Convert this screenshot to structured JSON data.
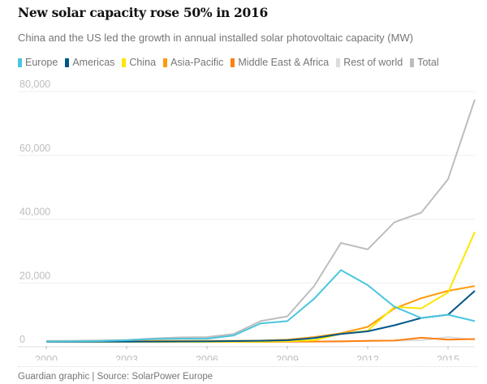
{
  "chart_data": {
    "type": "line",
    "title": "New solar capacity rose 50% in 2016",
    "subtitle": "China and the US led the growth in annual installed solar photovoltaic capacity (MW)",
    "xlabel": "",
    "ylabel": "",
    "x": [
      2000,
      2001,
      2002,
      2003,
      2004,
      2005,
      2006,
      2007,
      2008,
      2009,
      2010,
      2011,
      2012,
      2013,
      2014,
      2015,
      2016
    ],
    "xticks": [
      2000,
      2003,
      2006,
      2009,
      2012,
      2015
    ],
    "xtick_labels": [
      "2000",
      "2003",
      "2006",
      "2009",
      "2012",
      "2015"
    ],
    "yticks": [
      0,
      20000,
      40000,
      60000,
      80000
    ],
    "ytick_labels": [
      "0",
      "20,000",
      "40,000",
      "60,000",
      "80,000"
    ],
    "ylim": [
      0,
      80000
    ],
    "xlim": [
      2000,
      2016
    ],
    "grid": true,
    "legend_position": "top-left",
    "series": [
      {
        "name": "Europe",
        "color": "#4bc6df",
        "values": [
          100,
          150,
          250,
          500,
          900,
          1000,
          1000,
          2000,
          5800,
          6500,
          13500,
          22500,
          17800,
          11000,
          7500,
          8500,
          6500
        ]
      },
      {
        "name": "Americas",
        "color": "#005689",
        "values": [
          20,
          30,
          50,
          70,
          100,
          120,
          150,
          250,
          350,
          500,
          1200,
          2500,
          3300,
          5200,
          7500,
          8500,
          16000
        ]
      },
      {
        "name": "China",
        "color": "#ffe500",
        "values": [
          0,
          0,
          0,
          10,
          20,
          10,
          10,
          20,
          40,
          200,
          500,
          2500,
          3500,
          11000,
          10500,
          15500,
          34500
        ]
      },
      {
        "name": "Asia-Pacific",
        "color": "#ff9b0b",
        "values": [
          100,
          120,
          180,
          250,
          300,
          300,
          300,
          350,
          400,
          700,
          1500,
          2700,
          4700,
          10500,
          13700,
          16000,
          17500
        ]
      },
      {
        "name": "Middle East & Africa",
        "color": "#ff7f0f",
        "values": [
          0,
          0,
          0,
          0,
          0,
          0,
          0,
          0,
          0,
          50,
          100,
          150,
          300,
          400,
          1300,
          700,
          900
        ]
      },
      {
        "name": "Rest of world",
        "color": "#dcdcdc",
        "values": [
          0,
          0,
          0,
          0,
          0,
          0,
          0,
          0,
          0,
          50,
          100,
          200,
          300,
          400,
          500,
          1500,
          700
        ]
      },
      {
        "name": "Total",
        "color": "#bdbdbd",
        "values": [
          300,
          350,
          450,
          600,
          1100,
          1400,
          1500,
          2500,
          6500,
          8000,
          17500,
          31000,
          29000,
          37500,
          40500,
          51000,
          76000
        ]
      }
    ],
    "source": "Guardian graphic | Source: SolarPower Europe"
  }
}
